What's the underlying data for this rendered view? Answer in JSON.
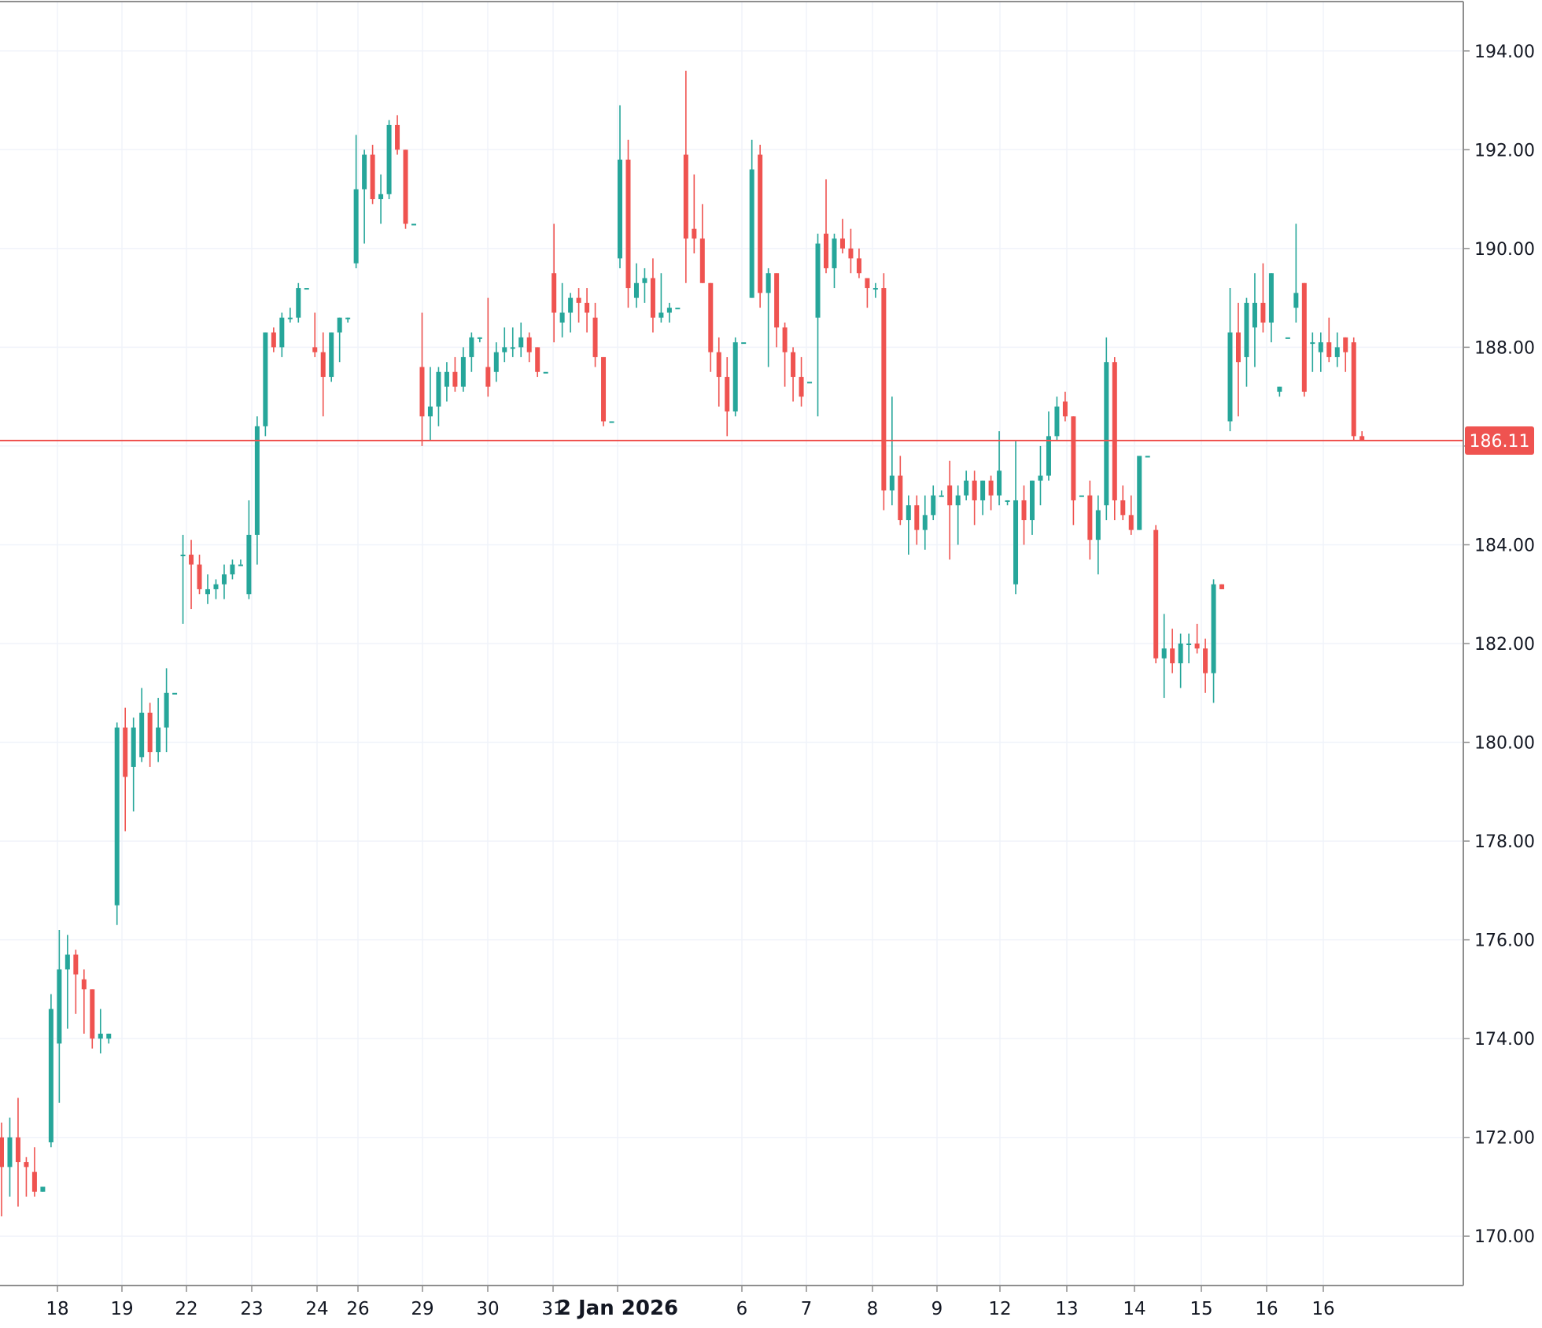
{
  "chart_data": {
    "type": "candlestick",
    "title": "",
    "ylim": [
      169.0,
      195.0
    ],
    "y_ticks": [
      "194.00",
      "192.00",
      "190.00",
      "188.00",
      "186.00",
      "184.00",
      "182.00",
      "180.00",
      "178.00",
      "176.00",
      "174.00",
      "172.00",
      "170.00"
    ],
    "y_tick_values": [
      194,
      192,
      190,
      188,
      186,
      184,
      182,
      180,
      178,
      176,
      174,
      172,
      170
    ],
    "x_ticks": [
      {
        "label": "18",
        "session": 0
      },
      {
        "label": "19",
        "session": 1
      },
      {
        "label": "22",
        "session": 2
      },
      {
        "label": "23",
        "session": 3
      },
      {
        "label": "24",
        "session": 4
      },
      {
        "label": "26",
        "session": 5
      },
      {
        "label": "29",
        "session": 6
      },
      {
        "label": "30",
        "session": 7
      },
      {
        "label": "31",
        "session": 8
      },
      {
        "label": "2 Jan 2026",
        "session": 9,
        "major": true
      },
      {
        "label": "6",
        "session": 10
      },
      {
        "label": "7",
        "session": 11
      },
      {
        "label": "8",
        "session": 12
      },
      {
        "label": "9",
        "session": 13
      },
      {
        "label": "12",
        "session": 14
      },
      {
        "label": "13",
        "session": 15
      },
      {
        "label": "14",
        "session": 16
      },
      {
        "label": "15",
        "session": 17
      },
      {
        "label": "16",
        "session": 18
      },
      {
        "label": "16",
        "session": 19
      }
    ],
    "last_price": 186.11,
    "last_price_label": "186.11",
    "colors": {
      "up": "#26a69a",
      "down": "#ef5350",
      "grid": "#f0f3fa",
      "axis": "#8e8e8e",
      "text": "#131722"
    },
    "candles": [
      [
        172.0,
        172.3,
        170.4,
        171.4
      ],
      [
        171.4,
        172.4,
        170.8,
        172.0
      ],
      [
        172.0,
        172.8,
        170.6,
        171.5
      ],
      [
        171.5,
        171.6,
        170.8,
        171.4
      ],
      [
        171.3,
        171.8,
        170.8,
        170.9
      ],
      [
        170.9,
        171.0,
        170.9,
        171.0
      ],
      [
        171.9,
        174.9,
        171.8,
        174.6
      ],
      [
        173.9,
        176.2,
        172.7,
        175.4
      ],
      [
        175.4,
        176.1,
        174.2,
        175.7
      ],
      [
        175.7,
        175.8,
        174.5,
        175.3
      ],
      [
        175.2,
        175.4,
        174.1,
        175.0
      ],
      [
        175.0,
        175.0,
        173.8,
        174.0
      ],
      [
        174.0,
        174.6,
        173.7,
        174.1
      ],
      [
        174.0,
        174.1,
        173.9,
        174.1
      ],
      [
        176.7,
        180.4,
        176.3,
        180.3
      ],
      [
        180.3,
        180.7,
        178.2,
        179.3
      ],
      [
        179.5,
        180.5,
        178.6,
        180.3
      ],
      [
        179.7,
        181.1,
        179.6,
        180.6
      ],
      [
        180.6,
        180.8,
        179.5,
        179.8
      ],
      [
        179.8,
        180.9,
        179.6,
        180.3
      ],
      [
        180.3,
        181.5,
        179.8,
        181.0
      ],
      [
        181.0,
        181.0,
        181.0,
        181.0
      ],
      [
        183.8,
        184.2,
        182.4,
        183.8
      ],
      [
        183.8,
        184.1,
        182.7,
        183.6
      ],
      [
        183.6,
        183.8,
        183.0,
        183.1
      ],
      [
        183.0,
        183.4,
        182.8,
        183.1
      ],
      [
        183.1,
        183.3,
        182.9,
        183.2
      ],
      [
        183.2,
        183.6,
        182.9,
        183.4
      ],
      [
        183.4,
        183.7,
        183.3,
        183.6
      ],
      [
        183.6,
        183.7,
        183.6,
        183.6
      ],
      [
        183.0,
        184.9,
        182.9,
        184.2
      ],
      [
        184.2,
        186.6,
        183.6,
        186.4
      ],
      [
        186.4,
        188.3,
        186.2,
        188.3
      ],
      [
        188.3,
        188.4,
        187.9,
        188.0
      ],
      [
        188.0,
        188.7,
        187.8,
        188.6
      ],
      [
        188.6,
        188.8,
        188.5,
        188.6
      ],
      [
        188.6,
        189.3,
        188.5,
        189.2
      ],
      [
        189.2,
        189.2,
        189.2,
        189.2
      ],
      [
        188.0,
        188.7,
        187.8,
        187.9
      ],
      [
        187.9,
        188.3,
        186.6,
        187.4
      ],
      [
        187.4,
        188.3,
        187.3,
        188.3
      ],
      [
        188.3,
        188.6,
        187.7,
        188.6
      ],
      [
        188.6,
        188.6,
        188.5,
        188.6
      ],
      [
        189.7,
        192.3,
        189.6,
        191.2
      ],
      [
        191.2,
        192.0,
        190.1,
        191.9
      ],
      [
        191.9,
        192.1,
        190.9,
        191.0
      ],
      [
        191.0,
        191.5,
        190.5,
        191.1
      ],
      [
        191.1,
        192.6,
        191.0,
        192.5
      ],
      [
        192.5,
        192.7,
        191.9,
        192.0
      ],
      [
        192.0,
        192.0,
        190.4,
        190.5
      ],
      [
        190.5,
        190.5,
        190.5,
        190.5
      ],
      [
        187.6,
        188.7,
        186.0,
        186.6
      ],
      [
        186.6,
        187.6,
        186.1,
        186.8
      ],
      [
        186.8,
        187.6,
        186.4,
        187.5
      ],
      [
        187.2,
        187.7,
        186.9,
        187.5
      ],
      [
        187.5,
        187.8,
        187.1,
        187.2
      ],
      [
        187.2,
        188.0,
        187.1,
        187.8
      ],
      [
        187.8,
        188.3,
        187.5,
        188.2
      ],
      [
        188.2,
        188.2,
        188.1,
        188.2
      ],
      [
        187.6,
        189.0,
        187.0,
        187.2
      ],
      [
        187.5,
        188.1,
        187.3,
        187.9
      ],
      [
        187.9,
        188.4,
        187.7,
        188.0
      ],
      [
        188.0,
        188.4,
        187.8,
        188.0
      ],
      [
        188.0,
        188.5,
        187.8,
        188.2
      ],
      [
        188.2,
        188.3,
        187.7,
        187.9
      ],
      [
        188.0,
        188.0,
        187.4,
        187.5
      ],
      [
        187.5,
        187.5,
        187.5,
        187.5
      ],
      [
        189.5,
        190.5,
        188.1,
        188.7
      ],
      [
        188.5,
        189.3,
        188.2,
        188.7
      ],
      [
        188.7,
        189.1,
        188.3,
        189.0
      ],
      [
        189.0,
        189.2,
        188.5,
        188.9
      ],
      [
        188.9,
        189.2,
        188.3,
        188.7
      ],
      [
        188.6,
        188.9,
        187.6,
        187.8
      ],
      [
        187.8,
        187.8,
        186.4,
        186.5
      ],
      [
        186.5,
        186.5,
        186.5,
        186.5
      ],
      [
        189.8,
        192.9,
        189.6,
        191.8
      ],
      [
        191.8,
        192.2,
        188.8,
        189.2
      ],
      [
        189.0,
        189.7,
        188.8,
        189.3
      ],
      [
        189.3,
        189.6,
        188.9,
        189.4
      ],
      [
        189.4,
        189.8,
        188.3,
        188.6
      ],
      [
        188.6,
        189.5,
        188.5,
        188.7
      ],
      [
        188.7,
        188.9,
        188.5,
        188.8
      ],
      [
        188.8,
        188.8,
        188.8,
        188.8
      ],
      [
        191.9,
        193.6,
        189.3,
        190.2
      ],
      [
        190.4,
        191.5,
        189.9,
        190.2
      ],
      [
        190.2,
        190.9,
        189.3,
        189.3
      ],
      [
        189.3,
        189.3,
        187.5,
        187.9
      ],
      [
        187.9,
        188.2,
        186.8,
        187.4
      ],
      [
        187.4,
        187.8,
        186.2,
        186.7
      ],
      [
        186.7,
        188.2,
        186.6,
        188.1
      ],
      [
        188.1,
        188.1,
        188.1,
        188.1
      ],
      [
        189.0,
        192.2,
        189.0,
        191.6
      ],
      [
        191.9,
        192.1,
        188.8,
        189.1
      ],
      [
        189.1,
        189.6,
        187.6,
        189.5
      ],
      [
        189.5,
        189.5,
        188.0,
        188.4
      ],
      [
        188.4,
        188.5,
        187.2,
        187.9
      ],
      [
        187.9,
        188.0,
        186.9,
        187.4
      ],
      [
        187.4,
        187.8,
        186.8,
        187.0
      ],
      [
        187.3,
        187.3,
        187.3,
        187.3
      ],
      [
        188.6,
        190.3,
        186.6,
        190.1
      ],
      [
        190.3,
        191.4,
        189.5,
        189.6
      ],
      [
        189.6,
        190.3,
        189.2,
        190.2
      ],
      [
        190.2,
        190.6,
        189.9,
        190.0
      ],
      [
        190.0,
        190.4,
        189.5,
        189.8
      ],
      [
        189.8,
        190.0,
        189.4,
        189.5
      ],
      [
        189.4,
        189.4,
        188.8,
        189.2
      ],
      [
        189.2,
        189.3,
        189.0,
        189.2
      ],
      [
        189.2,
        189.5,
        184.7,
        185.1
      ],
      [
        185.1,
        187.0,
        184.8,
        185.4
      ],
      [
        185.4,
        185.8,
        184.4,
        184.5
      ],
      [
        184.5,
        185.0,
        183.8,
        184.8
      ],
      [
        184.8,
        185.0,
        184.0,
        184.3
      ],
      [
        184.3,
        185.0,
        183.9,
        184.6
      ],
      [
        184.6,
        185.2,
        184.5,
        185.0
      ],
      [
        185.0,
        185.1,
        185.0,
        185.0
      ],
      [
        185.2,
        185.7,
        183.7,
        184.8
      ],
      [
        184.8,
        185.2,
        184.0,
        185.0
      ],
      [
        185.0,
        185.5,
        184.9,
        185.3
      ],
      [
        185.3,
        185.5,
        184.4,
        184.9
      ],
      [
        184.9,
        185.3,
        184.6,
        185.3
      ],
      [
        185.3,
        185.4,
        184.7,
        185.0
      ],
      [
        185.0,
        186.3,
        184.8,
        185.5
      ],
      [
        184.9,
        184.9,
        184.8,
        184.9
      ],
      [
        183.2,
        186.1,
        183.0,
        184.9
      ],
      [
        184.9,
        185.2,
        184.0,
        184.5
      ],
      [
        184.5,
        185.3,
        184.2,
        185.3
      ],
      [
        185.3,
        186.0,
        184.8,
        185.4
      ],
      [
        185.4,
        186.7,
        185.3,
        186.2
      ],
      [
        186.2,
        187.0,
        186.1,
        186.8
      ],
      [
        186.9,
        187.1,
        186.5,
        186.6
      ],
      [
        186.6,
        186.6,
        184.4,
        184.9
      ],
      [
        185.0,
        185.0,
        185.0,
        185.0
      ],
      [
        185.0,
        185.3,
        183.7,
        184.1
      ],
      [
        184.1,
        185.0,
        183.4,
        184.7
      ],
      [
        184.8,
        188.2,
        184.5,
        187.7
      ],
      [
        187.7,
        187.8,
        184.5,
        184.9
      ],
      [
        184.9,
        185.2,
        184.5,
        184.6
      ],
      [
        184.6,
        185.0,
        184.2,
        184.3
      ],
      [
        184.3,
        185.8,
        184.3,
        185.8
      ],
      [
        185.8,
        185.8,
        185.8,
        185.8
      ],
      [
        184.3,
        184.4,
        181.6,
        181.7
      ],
      [
        181.7,
        182.6,
        180.9,
        181.9
      ],
      [
        181.9,
        182.3,
        181.4,
        181.6
      ],
      [
        181.6,
        182.2,
        181.1,
        182.0
      ],
      [
        182.0,
        182.2,
        181.6,
        182.0
      ],
      [
        182.0,
        182.4,
        181.8,
        181.9
      ],
      [
        181.9,
        182.1,
        181.0,
        181.4
      ],
      [
        181.4,
        183.3,
        180.8,
        183.2
      ],
      [
        183.2,
        183.2,
        183.1,
        183.1
      ],
      [
        186.5,
        189.2,
        186.3,
        188.3
      ],
      [
        188.3,
        188.9,
        186.6,
        187.7
      ],
      [
        187.8,
        189.0,
        187.2,
        188.9
      ],
      [
        188.4,
        189.5,
        187.6,
        188.9
      ],
      [
        188.9,
        189.7,
        188.3,
        188.5
      ],
      [
        188.5,
        189.5,
        188.1,
        189.5
      ],
      [
        187.1,
        187.2,
        187.0,
        187.2
      ],
      [
        188.2,
        188.2,
        188.2,
        188.2
      ],
      [
        188.8,
        190.5,
        188.5,
        189.1
      ],
      [
        189.3,
        189.3,
        187.0,
        187.1
      ],
      [
        188.1,
        188.3,
        187.5,
        188.1
      ],
      [
        187.9,
        188.3,
        187.5,
        188.1
      ],
      [
        188.1,
        188.6,
        187.7,
        187.8
      ],
      [
        187.8,
        188.3,
        187.6,
        188.0
      ],
      [
        188.2,
        188.2,
        187.5,
        187.9
      ],
      [
        188.1,
        188.2,
        186.1,
        186.2
      ],
      [
        186.2,
        186.3,
        186.1,
        186.1
      ]
    ]
  }
}
